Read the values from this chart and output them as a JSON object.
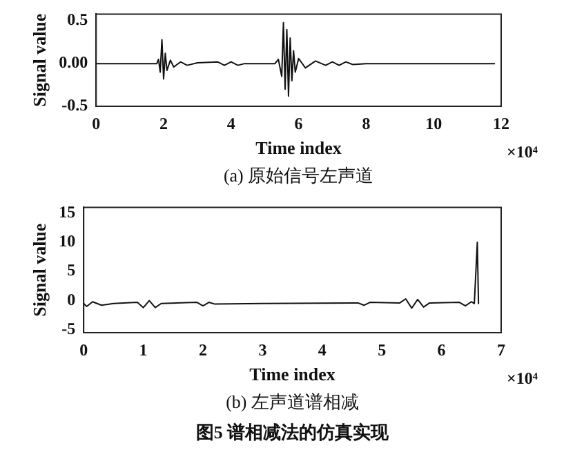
{
  "chart_data": [
    {
      "type": "line",
      "xlabel": "Time index",
      "ylabel": "Signal value",
      "xlim": [
        0,
        12
      ],
      "xticks": [
        0,
        2,
        4,
        6,
        8,
        10,
        12
      ],
      "ylim": [
        -0.5,
        0.58
      ],
      "yticks": [
        -0.5,
        {
          "value": 0,
          "label": "0.00"
        },
        0.5
      ],
      "grid": false,
      "legend": false,
      "marker": "none",
      "line_style": "solid",
      "annotations": [
        "×10⁴",
        "(a) 原始信号左声道"
      ],
      "series": [
        {
          "color": "#111111",
          "x": [
            0,
            1.8,
            1.85,
            1.9,
            1.95,
            2.0,
            2.05,
            2.1,
            2.2,
            2.3,
            2.5,
            2.7,
            3.0,
            3.6,
            3.8,
            4.0,
            4.2,
            4.4,
            5.3,
            5.4,
            5.5,
            5.55,
            5.6,
            5.65,
            5.7,
            5.75,
            5.8,
            5.85,
            5.9,
            6.0,
            6.2,
            6.5,
            6.8,
            7.0,
            7.2,
            7.4,
            7.6,
            8.0,
            11.8
          ],
          "values": [
            0,
            0,
            0.05,
            -0.1,
            0.28,
            -0.18,
            0.12,
            -0.08,
            0.04,
            -0.04,
            0.02,
            -0.02,
            0.01,
            0.02,
            -0.02,
            0.02,
            -0.02,
            0,
            0,
            0.05,
            -0.15,
            0.48,
            -0.3,
            0.4,
            -0.38,
            0.3,
            -0.2,
            0.15,
            -0.1,
            0.06,
            -0.05,
            0.03,
            -0.02,
            0.02,
            -0.02,
            0.02,
            -0.01,
            0,
            0
          ]
        }
      ]
    },
    {
      "type": "line",
      "xlabel": "Time index",
      "ylabel": "Signal value",
      "xlim": [
        0,
        7
      ],
      "xticks": [
        0,
        1,
        2,
        3,
        4,
        5,
        6,
        7
      ],
      "ylim": [
        -5.5,
        16
      ],
      "yticks": [
        -5,
        0,
        5,
        10,
        15
      ],
      "grid": false,
      "legend": false,
      "marker": "none",
      "line_style": "solid",
      "annotations": [
        "×10⁴",
        "(b) 左声道谱相减",
        "图5 谱相减法的仿真实现"
      ],
      "series": [
        {
          "color": "#111111",
          "x": [
            0,
            0.05,
            0.15,
            0.3,
            0.5,
            0.9,
            1.0,
            1.1,
            1.2,
            1.3,
            1.9,
            2.0,
            2.1,
            2.2,
            3.0,
            4.6,
            4.7,
            4.8,
            5.3,
            5.4,
            5.5,
            5.6,
            5.7,
            5.8,
            6.3,
            6.4,
            6.5,
            6.55,
            6.6,
            6.62
          ],
          "values": [
            -0.5,
            -1,
            -0.2,
            -0.8,
            -0.5,
            -0.3,
            -1.2,
            0,
            -1.2,
            -0.5,
            -0.3,
            -0.9,
            -0.3,
            -0.6,
            -0.5,
            -0.4,
            -0.8,
            -0.3,
            -0.4,
            0.3,
            -1.3,
            0.2,
            -1.1,
            -0.4,
            -0.3,
            -0.9,
            -0.2,
            -0.5,
            10,
            -0.5
          ]
        }
      ]
    }
  ]
}
